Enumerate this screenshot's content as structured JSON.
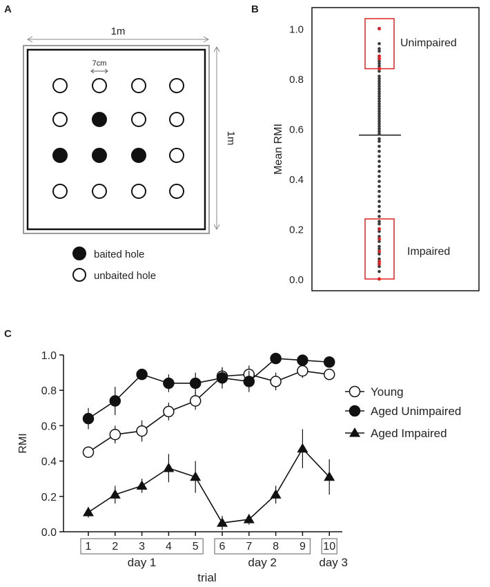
{
  "panels": {
    "a": "A",
    "b": "B",
    "c": "C"
  },
  "panel_a": {
    "width_label": "1m",
    "height_label": "1m",
    "spacing_label": "7cm",
    "grid": [
      [
        0,
        0,
        0,
        0
      ],
      [
        0,
        1,
        0,
        0
      ],
      [
        1,
        1,
        1,
        0
      ],
      [
        0,
        0,
        0,
        0
      ]
    ],
    "legend": [
      {
        "label": "baited hole",
        "filled": true
      },
      {
        "label": "unbaited hole",
        "filled": false
      }
    ]
  },
  "chart_data": [
    {
      "type": "scatter",
      "ylabel": "Mean RMI",
      "ylim": [
        0,
        1.05
      ],
      "yticks": [
        "0.0",
        "0.2",
        "0.4",
        "0.6",
        "0.8",
        "1.0"
      ],
      "mean": 0.575,
      "annotations": [
        {
          "label": "Unimpaired",
          "range": [
            0.84,
            1.04
          ]
        },
        {
          "label": "Impaired",
          "range": [
            0,
            0.24
          ]
        }
      ],
      "colors": {
        "grey": "#3a3a3a",
        "red": "#e02020",
        "box": "#e02020"
      },
      "points_grey": [
        0.94,
        0.92,
        0.91,
        0.87,
        0.86,
        0.85,
        0.83,
        0.81,
        0.8,
        0.79,
        0.78,
        0.77,
        0.76,
        0.75,
        0.74,
        0.73,
        0.72,
        0.71,
        0.7,
        0.69,
        0.68,
        0.67,
        0.66,
        0.65,
        0.64,
        0.63,
        0.62,
        0.61,
        0.6,
        0.59,
        0.58,
        0.56,
        0.55,
        0.53,
        0.51,
        0.49,
        0.47,
        0.45,
        0.43,
        0.41,
        0.39,
        0.37,
        0.35,
        0.33,
        0.31,
        0.29,
        0.27,
        0.25,
        0.23,
        0.22,
        0.19,
        0.17,
        0.15,
        0.13,
        0.12,
        0.1,
        0.08,
        0.05,
        0.03
      ],
      "points_red": [
        1.0,
        0.89,
        0.88,
        0.84,
        0.2,
        0.16,
        0.11,
        0.07,
        0.06,
        0.0
      ]
    },
    {
      "type": "line",
      "ylabel": "RMI",
      "xlabel": "trial",
      "ylim": [
        0,
        1.0
      ],
      "yticks": [
        "0.0",
        "0.2",
        "0.4",
        "0.6",
        "0.8",
        "1.0"
      ],
      "categories": [
        "1",
        "2",
        "3",
        "4",
        "5",
        "6",
        "7",
        "8",
        "9",
        "10"
      ],
      "day_groups": [
        {
          "label": "day 1",
          "from": 1,
          "to": 5
        },
        {
          "label": "day 2",
          "from": 6,
          "to": 9
        },
        {
          "label": "day 3",
          "from": 10,
          "to": 10
        }
      ],
      "series": [
        {
          "name": "Young",
          "marker": "open-circle",
          "values": [
            0.45,
            0.55,
            0.57,
            0.68,
            0.74,
            0.88,
            0.89,
            0.85,
            0.91,
            0.89
          ],
          "errors": [
            0.03,
            0.05,
            0.06,
            0.05,
            0.05,
            0.05,
            0.05,
            0.05,
            0.04,
            0.03
          ]
        },
        {
          "name": "Aged Unimpaired",
          "marker": "filled-circle",
          "values": [
            0.64,
            0.74,
            0.89,
            0.84,
            0.84,
            0.87,
            0.85,
            0.98,
            0.97,
            0.96
          ],
          "errors": [
            0.06,
            0.08,
            0.03,
            0.05,
            0.06,
            0.06,
            0.06,
            0.02,
            0.02,
            0.02
          ]
        },
        {
          "name": "Aged Impaired",
          "marker": "filled-triangle",
          "values": [
            0.11,
            0.21,
            0.26,
            0.36,
            0.31,
            0.05,
            0.07,
            0.21,
            0.47,
            0.31
          ],
          "errors": [
            0.03,
            0.05,
            0.04,
            0.08,
            0.09,
            0.04,
            0.03,
            0.05,
            0.11,
            0.1
          ]
        }
      ]
    }
  ]
}
